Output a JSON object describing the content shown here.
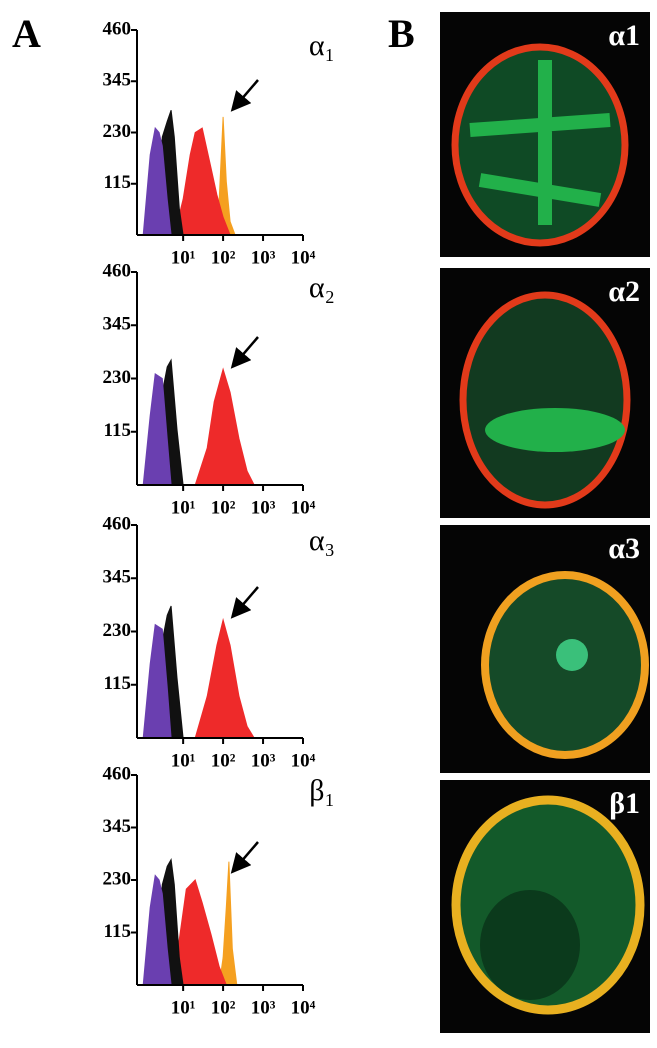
{
  "panel_labels": {
    "a": "A",
    "b": "B"
  },
  "images": [
    {
      "label": "α1"
    },
    {
      "label": "α2"
    },
    {
      "label": "α3"
    },
    {
      "label": "β1"
    }
  ],
  "chart_data": [
    {
      "type": "area",
      "title": "α₁",
      "log_x": true,
      "xlim": [
        0.7,
        10000
      ],
      "ylim": [
        0,
        460
      ],
      "xticks": [
        {
          "value": 10,
          "label": "10¹"
        },
        {
          "value": 100,
          "label": "10²"
        },
        {
          "value": 1000,
          "label": "10³"
        },
        {
          "value": 10000,
          "label": "10⁴"
        }
      ],
      "yticks": [
        115,
        230,
        345,
        460
      ],
      "series": [
        {
          "color": "#f5a020",
          "x": [
            60,
            80,
            100,
            120,
            150,
            200
          ],
          "values": [
            0,
            80,
            265,
            120,
            30,
            0
          ]
        },
        {
          "color": "#ee2a2a",
          "x": [
            6,
            10,
            15,
            20,
            30,
            50,
            70,
            100,
            150
          ],
          "values": [
            0,
            80,
            180,
            230,
            240,
            150,
            90,
            40,
            0
          ]
        },
        {
          "color": "#111111",
          "x": [
            2,
            3,
            4,
            5,
            6,
            8,
            10
          ],
          "values": [
            0,
            220,
            255,
            280,
            220,
            60,
            0
          ]
        },
        {
          "color": "#6a3fb0",
          "x": [
            1,
            1.5,
            2,
            2.5,
            3,
            4,
            5
          ],
          "values": [
            0,
            180,
            240,
            230,
            200,
            80,
            0
          ]
        }
      ]
    },
    {
      "type": "area",
      "title": "α₂",
      "log_x": true,
      "xlim": [
        0.7,
        10000
      ],
      "ylim": [
        0,
        460
      ],
      "xticks": [
        {
          "value": 10,
          "label": "10¹"
        },
        {
          "value": 100,
          "label": "10²"
        },
        {
          "value": 1000,
          "label": "10³"
        },
        {
          "value": 10000,
          "label": "10⁴"
        }
      ],
      "yticks": [
        115,
        230,
        345,
        460
      ],
      "series": [
        {
          "color": "#ee2a2a",
          "x": [
            20,
            40,
            60,
            100,
            150,
            250,
            400,
            600
          ],
          "values": [
            0,
            80,
            180,
            250,
            200,
            100,
            30,
            0
          ]
        },
        {
          "color": "#111111",
          "x": [
            2,
            3,
            4,
            5,
            7,
            10
          ],
          "values": [
            0,
            200,
            255,
            270,
            120,
            0
          ]
        },
        {
          "color": "#6a3fb0",
          "x": [
            1,
            1.5,
            2,
            3,
            4,
            5
          ],
          "values": [
            0,
            150,
            240,
            230,
            100,
            0
          ]
        }
      ]
    },
    {
      "type": "area",
      "title": "α₃",
      "log_x": true,
      "xlim": [
        0.7,
        10000
      ],
      "ylim": [
        0,
        460
      ],
      "xticks": [
        {
          "value": 10,
          "label": "10¹"
        },
        {
          "value": 100,
          "label": "10²"
        },
        {
          "value": 1000,
          "label": "10³"
        },
        {
          "value": 10000,
          "label": "10⁴"
        }
      ],
      "yticks": [
        115,
        230,
        345,
        460
      ],
      "series": [
        {
          "color": "#ee2a2a",
          "x": [
            20,
            40,
            70,
            100,
            150,
            250,
            400,
            600
          ],
          "values": [
            0,
            90,
            200,
            255,
            200,
            90,
            25,
            0
          ]
        },
        {
          "color": "#111111",
          "x": [
            2,
            3,
            4,
            5,
            7,
            10
          ],
          "values": [
            0,
            210,
            265,
            285,
            130,
            0
          ]
        },
        {
          "color": "#6a3fb0",
          "x": [
            1,
            1.5,
            2,
            3,
            4,
            5
          ],
          "values": [
            0,
            160,
            245,
            235,
            110,
            0
          ]
        }
      ]
    },
    {
      "type": "area",
      "title": "β₁",
      "log_x": true,
      "xlim": [
        0.7,
        10000
      ],
      "ylim": [
        0,
        460
      ],
      "xticks": [
        {
          "value": 10,
          "label": "10¹"
        },
        {
          "value": 100,
          "label": "10²"
        },
        {
          "value": 1000,
          "label": "10³"
        },
        {
          "value": 10000,
          "label": "10⁴"
        }
      ],
      "yticks": [
        115,
        230,
        345,
        460
      ],
      "series": [
        {
          "color": "#f5a020",
          "x": [
            80,
            100,
            120,
            140,
            170,
            220
          ],
          "values": [
            0,
            60,
            170,
            270,
            80,
            0
          ]
        },
        {
          "color": "#ee2a2a",
          "x": [
            5,
            8,
            12,
            20,
            30,
            50,
            80,
            120
          ],
          "values": [
            0,
            100,
            210,
            230,
            180,
            110,
            40,
            0
          ]
        },
        {
          "color": "#111111",
          "x": [
            2,
            3,
            4,
            5,
            6,
            8,
            10
          ],
          "values": [
            0,
            220,
            260,
            275,
            220,
            60,
            0
          ]
        },
        {
          "color": "#6a3fb0",
          "x": [
            1,
            1.5,
            2,
            2.5,
            3,
            4,
            5
          ],
          "values": [
            0,
            170,
            240,
            230,
            200,
            80,
            0
          ]
        }
      ]
    }
  ]
}
